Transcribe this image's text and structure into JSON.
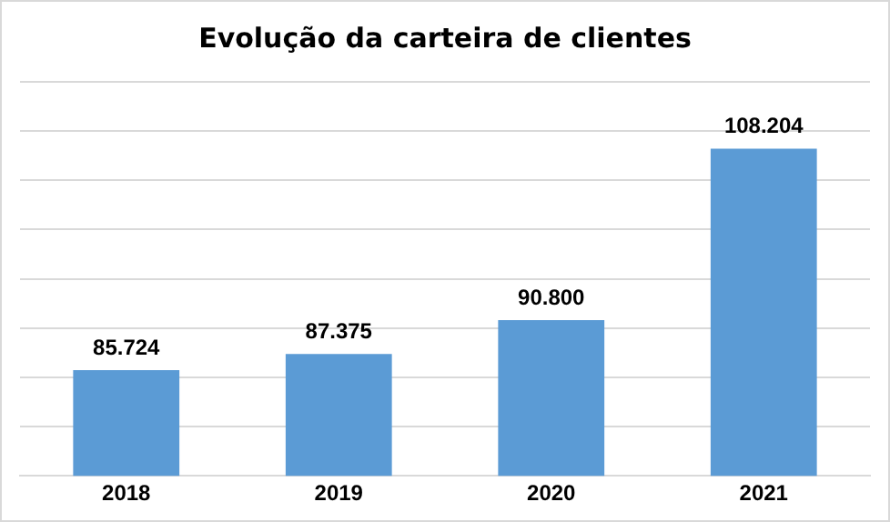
{
  "chart_data": {
    "type": "bar",
    "title": "Evolução da carteira de clientes",
    "categories": [
      "2018",
      "2019",
      "2020",
      "2021"
    ],
    "values": [
      85724,
      87375,
      90800,
      108204
    ],
    "value_labels": [
      "85.724",
      "87.375",
      "90.800",
      "108.204"
    ],
    "color": "#5b9bd5",
    "ylim": [
      75000,
      115000
    ],
    "yticks": [
      {
        "value": 75000,
        "label": null
      },
      {
        "value": 80000,
        "label": null
      },
      {
        "value": 85000,
        "label": null
      },
      {
        "value": 90000,
        "label": null
      },
      {
        "value": 95000,
        "label": null
      },
      {
        "value": 100000,
        "label": null
      },
      {
        "value": 105000,
        "label": null
      },
      {
        "value": 110000,
        "label": null
      },
      {
        "value": 115000,
        "label": null
      }
    ],
    "grid": "y",
    "tick_labels": "x",
    "legend": false
  }
}
